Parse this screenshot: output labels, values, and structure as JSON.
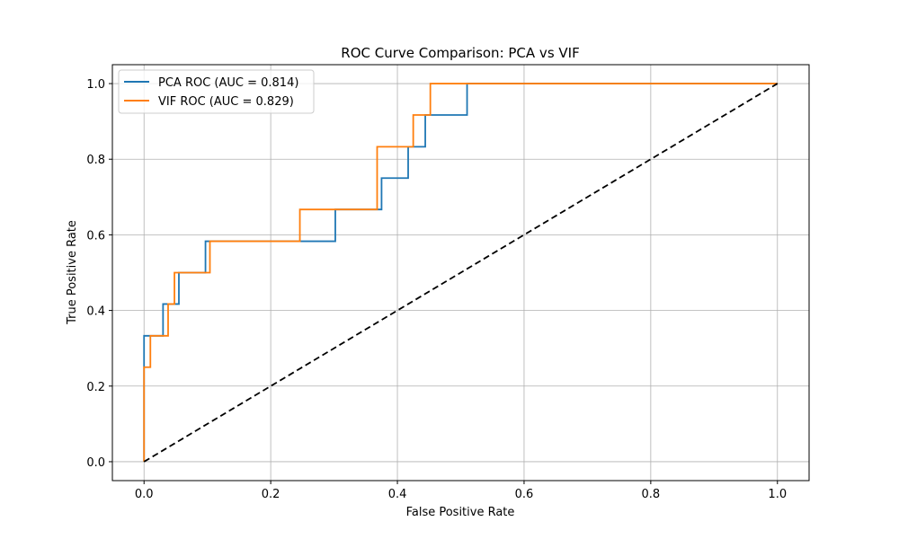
{
  "chart_data": {
    "type": "line",
    "title": "ROC Curve Comparison: PCA vs VIF",
    "xlabel": "False Positive Rate",
    "ylabel": "True Positive Rate",
    "xlim": [
      -0.05,
      1.05
    ],
    "ylim": [
      -0.05,
      1.05
    ],
    "xticks": [
      "0.0",
      "0.2",
      "0.4",
      "0.6",
      "0.8",
      "1.0"
    ],
    "yticks": [
      "0.0",
      "0.2",
      "0.4",
      "0.6",
      "0.8",
      "1.0"
    ],
    "grid": true,
    "legend_position": "top-left",
    "series": [
      {
        "name": "PCA ROC (AUC = 0.814)",
        "color": "#1f77b4",
        "x": [
          0.0,
          0.0,
          0.0,
          0.008,
          0.008,
          0.03,
          0.03,
          0.055,
          0.055,
          0.097,
          0.097,
          0.302,
          0.302,
          0.375,
          0.375,
          0.417,
          0.417,
          0.444,
          0.444,
          0.51,
          0.51,
          1.0
        ],
        "y": [
          0.0,
          0.25,
          0.333,
          0.333,
          0.333,
          0.333,
          0.417,
          0.417,
          0.5,
          0.5,
          0.583,
          0.583,
          0.667,
          0.667,
          0.75,
          0.75,
          0.833,
          0.833,
          0.917,
          0.917,
          1.0,
          1.0
        ]
      },
      {
        "name": "VIF ROC (AUC = 0.829)",
        "color": "#ff7f0e",
        "x": [
          0.0,
          0.0,
          0.01,
          0.01,
          0.038,
          0.038,
          0.048,
          0.048,
          0.104,
          0.104,
          0.246,
          0.246,
          0.368,
          0.368,
          0.425,
          0.425,
          0.452,
          0.452,
          1.0
        ],
        "y": [
          0.0,
          0.25,
          0.25,
          0.333,
          0.333,
          0.417,
          0.417,
          0.5,
          0.5,
          0.583,
          0.583,
          0.667,
          0.667,
          0.833,
          0.833,
          0.917,
          0.917,
          1.0,
          1.0
        ]
      },
      {
        "color": "#000000",
        "style": "dashed",
        "x": [
          0.0,
          1.0
        ],
        "y": [
          0.0,
          1.0
        ]
      }
    ]
  }
}
